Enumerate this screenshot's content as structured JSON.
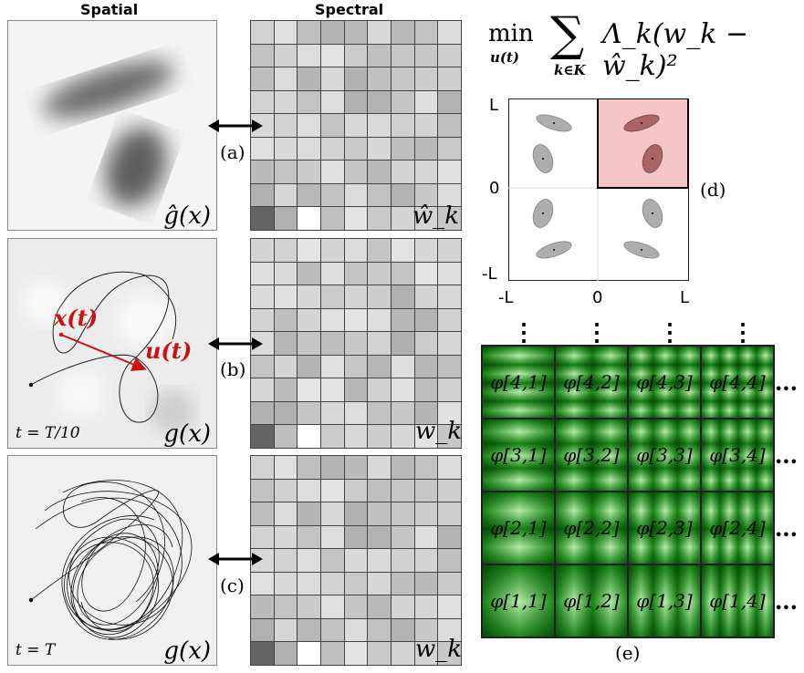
{
  "headers": {
    "spatial": "Spatial",
    "spectral": "Spectral"
  },
  "labels": {
    "a": "(a)",
    "b": "(b)",
    "c": "(c)",
    "d": "(d)",
    "e": "(e)",
    "ghat": "ĝ(x)",
    "g": "g(x)",
    "g2": "g(x)",
    "what": "ŵ_k",
    "w1": "w_k",
    "w2": "w_k",
    "t1": "t = T/10",
    "t2": "t = T",
    "xt": "x(t)",
    "ut": "u(t)"
  },
  "equation": {
    "min": "min",
    "min_sub": "u(t)",
    "sum_sub": "k∈K",
    "body": "Λ_k(w_k − ŵ_k)²"
  },
  "axes": {
    "top": "L",
    "mid_y": "0",
    "bottom": "-L",
    "left": "-L",
    "mid_x": "0",
    "right": "L"
  },
  "phi_rows": [
    [
      "φ[4,1]",
      "φ[4,2]",
      "φ[4,3]",
      "φ[4,4]"
    ],
    [
      "φ[3,1]",
      "φ[3,2]",
      "φ[3,3]",
      "φ[3,4]"
    ],
    [
      "φ[2,1]",
      "φ[2,2]",
      "φ[2,3]",
      "φ[2,4]"
    ],
    [
      "φ[1,1]",
      "φ[1,2]",
      "φ[1,3]",
      "φ[1,4]"
    ]
  ],
  "dots": {
    "right": "•••",
    "top": "⋮"
  },
  "colors": {
    "accent_red": "#cc1111",
    "highlight": "#f6c6c6",
    "green_dark": "#1a8a1a",
    "green_light": "#d8f5d0"
  }
}
